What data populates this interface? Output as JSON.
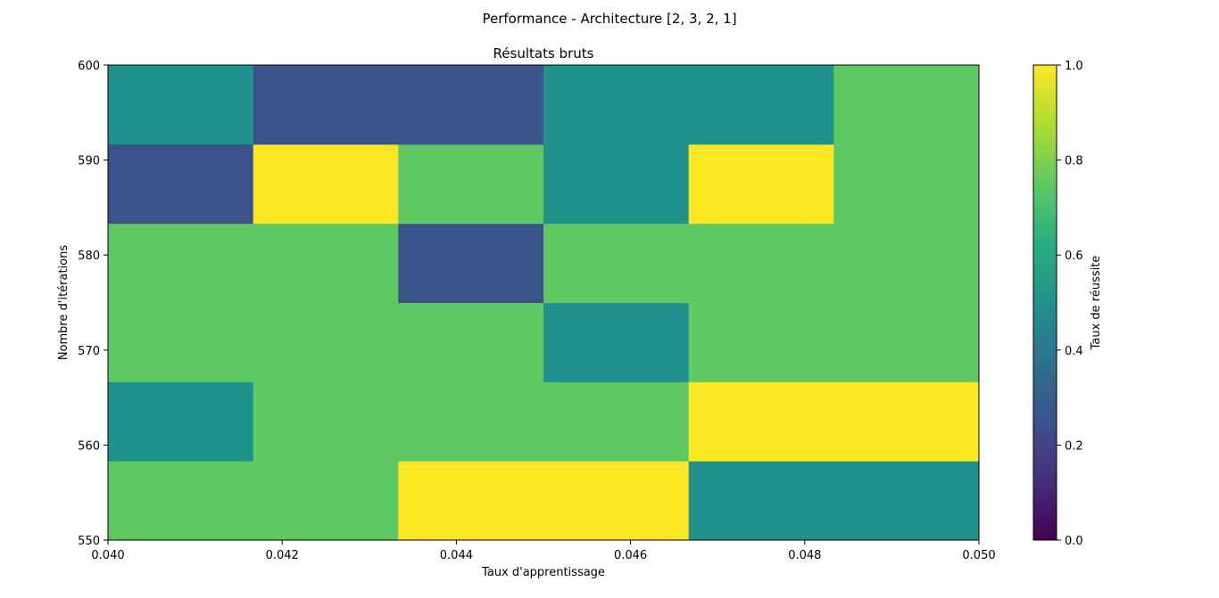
{
  "chart_data": {
    "type": "heatmap",
    "title": "Performance - Architecture [2, 3, 2, 1]",
    "subtitle": "Résultats bruts",
    "xlabel": "Taux d'apprentissage",
    "ylabel": "Nombre d'itérations",
    "colorbar_label": "Taux de réussite",
    "xlim": [
      0.04,
      0.05
    ],
    "ylim": [
      550,
      600
    ],
    "clim": [
      0.0,
      1.0
    ],
    "colormap": "viridis",
    "x_ticks": [
      "0.040",
      "0.042",
      "0.044",
      "0.046",
      "0.048",
      "0.050"
    ],
    "y_ticks": [
      "550",
      "560",
      "570",
      "580",
      "590",
      "600"
    ],
    "colorbar_ticks": [
      "0.0",
      "0.2",
      "0.4",
      "0.6",
      "0.8",
      "1.0"
    ],
    "x_edges": [
      0.04,
      0.041667,
      0.043333,
      0.045,
      0.046667,
      0.048333,
      0.05
    ],
    "y_edges": [
      550,
      558.333,
      566.667,
      575,
      583.333,
      591.667,
      600
    ],
    "values": [
      [
        0.75,
        0.75,
        1.0,
        1.0,
        0.5,
        0.5
      ],
      [
        0.5,
        0.75,
        0.75,
        0.75,
        1.0,
        1.0
      ],
      [
        0.75,
        0.75,
        0.75,
        0.5,
        0.75,
        0.75
      ],
      [
        0.75,
        0.75,
        0.25,
        0.75,
        0.75,
        0.75
      ],
      [
        0.25,
        1.0,
        0.75,
        0.5,
        1.0,
        0.75
      ],
      [
        0.5,
        0.25,
        0.25,
        0.5,
        0.5,
        0.75
      ]
    ],
    "grid": false
  }
}
